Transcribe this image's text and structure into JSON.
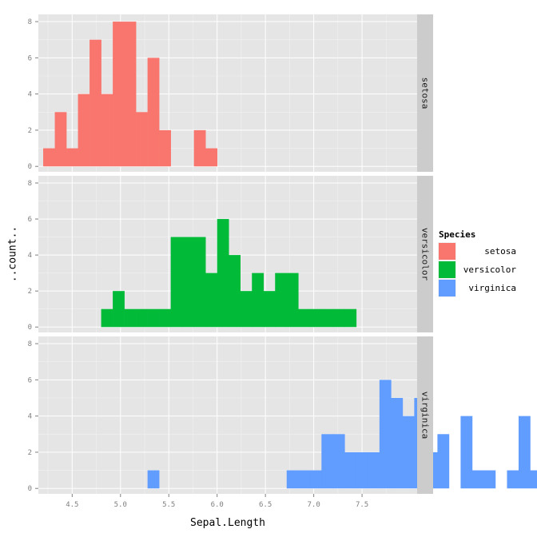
{
  "chart_data": {
    "type": "bar",
    "subtype": "histogram",
    "x": {
      "label": "Sepal.Length",
      "ticks": [
        4.5,
        5.0,
        5.5,
        6.0,
        6.5,
        7.0,
        7.5
      ],
      "tick_labels": [
        "4.5",
        "5.0",
        "5.5",
        "6.0",
        "6.5",
        "7.0",
        "7.5"
      ],
      "range": [
        4.15,
        8.07
      ]
    },
    "y": {
      "label": "..count..",
      "ticks": [
        0,
        2,
        4,
        6,
        8
      ],
      "tick_labels": [
        "0",
        "2",
        "4",
        "6",
        "8"
      ],
      "range": [
        -0.3,
        8.4
      ]
    },
    "bin": {
      "start": 4.2,
      "width": 0.12
    },
    "grid": true,
    "legend": {
      "title": "Species",
      "placement": "right",
      "entries": [
        {
          "label": "setosa",
          "color": "#F8766D"
        },
        {
          "label": "versicolor",
          "color": "#00BA38"
        },
        {
          "label": "virginica",
          "color": "#619CFF"
        }
      ]
    },
    "facets": [
      {
        "name": "setosa",
        "color": "#F8766D",
        "counts": [
          1,
          3,
          1,
          4,
          7,
          4,
          8,
          8,
          3,
          6,
          2,
          0,
          0,
          2,
          1
        ]
      },
      {
        "name": "versicolor",
        "color": "#00BA38",
        "counts": [
          0,
          0,
          0,
          0,
          0,
          1,
          2,
          1,
          1,
          1,
          1,
          5,
          5,
          5,
          3,
          6,
          4,
          2,
          3,
          2,
          3,
          3,
          1,
          1,
          1,
          1,
          1
        ]
      },
      {
        "name": "virginica",
        "color": "#619CFF",
        "counts": [
          0,
          0,
          0,
          0,
          0,
          0,
          0,
          0,
          0,
          1,
          0,
          0,
          0,
          0,
          0,
          0,
          0,
          0,
          0,
          0,
          0,
          1,
          1,
          1,
          3,
          3,
          2,
          2,
          2,
          6,
          5,
          4,
          5,
          2,
          3,
          0,
          4,
          1,
          1,
          0,
          1,
          4,
          1
        ]
      }
    ]
  }
}
